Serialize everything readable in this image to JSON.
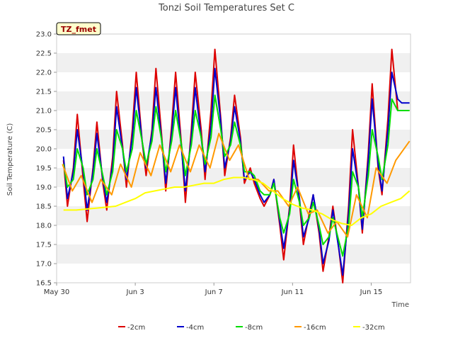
{
  "chart_data": {
    "type": "line",
    "title": "Tonzi Soil Temperatures Set C",
    "xlabel": "Time",
    "ylabel": "Soil Temperature (C)",
    "station_label": "TZ_fmet",
    "ylim": [
      16.5,
      23.0
    ],
    "xlim": [
      0,
      18
    ],
    "yticks": [
      16.5,
      17.0,
      17.5,
      18.0,
      18.5,
      19.0,
      19.5,
      20.0,
      20.5,
      21.0,
      21.5,
      22.0,
      22.5,
      23.0
    ],
    "xticks": [
      {
        "x": 0,
        "label": "May 30"
      },
      {
        "x": 4,
        "label": "Jun 3"
      },
      {
        "x": 8,
        "label": "Jun 7"
      },
      {
        "x": 12,
        "label": "Jun 11"
      },
      {
        "x": 16,
        "label": "Jun 15"
      }
    ],
    "grid": "horizontal bands",
    "legend_position": "bottom",
    "series": [
      {
        "name": "-2cm",
        "color": "#dd0000",
        "x": [
          0.35,
          0.55,
          0.85,
          1.05,
          1.35,
          1.55,
          1.85,
          2.05,
          2.35,
          2.55,
          2.85,
          3.05,
          3.35,
          3.55,
          3.85,
          4.05,
          4.35,
          4.55,
          4.85,
          5.05,
          5.35,
          5.55,
          5.85,
          6.05,
          6.35,
          6.55,
          6.85,
          7.05,
          7.35,
          7.55,
          7.85,
          8.05,
          8.35,
          8.55,
          8.85,
          9.05,
          9.35,
          9.55,
          9.85,
          10.05,
          10.35,
          10.55,
          10.85,
          11.05,
          11.35,
          11.55,
          11.85,
          12.05,
          12.35,
          12.55,
          12.85,
          13.05,
          13.35,
          13.55,
          13.85,
          14.05,
          14.35,
          14.55,
          14.85,
          15.05,
          15.35,
          15.55,
          15.85,
          16.05,
          16.35,
          16.55,
          16.85,
          17.05,
          17.35,
          17.55,
          17.85,
          17.95
        ],
        "y": [
          19.7,
          18.5,
          19.5,
          20.9,
          19.2,
          18.1,
          19.5,
          20.7,
          19.1,
          18.4,
          19.8,
          21.5,
          20.1,
          19.0,
          20.5,
          22.0,
          20.2,
          19.3,
          20.5,
          22.1,
          20.3,
          18.9,
          20.6,
          22.0,
          20.1,
          18.6,
          20.5,
          22.0,
          20.5,
          19.2,
          21.0,
          22.6,
          20.8,
          19.3,
          20.3,
          21.4,
          20.3,
          19.1,
          19.5,
          19.1,
          18.7,
          18.5,
          18.8,
          19.2,
          18.0,
          17.1,
          18.5,
          20.1,
          18.6,
          17.5,
          18.3,
          18.8,
          17.8,
          16.8,
          17.7,
          18.5,
          17.4,
          16.5,
          18.5,
          20.5,
          19.0,
          17.8,
          19.9,
          21.7,
          19.5,
          18.8,
          20.8,
          22.6,
          21.0,
          21.0,
          21.0,
          21.0
        ]
      },
      {
        "name": "-4cm",
        "color": "#0000cc",
        "x": [
          0.35,
          0.55,
          0.85,
          1.05,
          1.35,
          1.55,
          1.85,
          2.05,
          2.35,
          2.55,
          2.85,
          3.05,
          3.35,
          3.55,
          3.85,
          4.05,
          4.35,
          4.55,
          4.85,
          5.05,
          5.35,
          5.55,
          5.85,
          6.05,
          6.35,
          6.55,
          6.85,
          7.05,
          7.35,
          7.55,
          7.85,
          8.05,
          8.35,
          8.55,
          8.85,
          9.05,
          9.35,
          9.55,
          9.85,
          10.05,
          10.35,
          10.55,
          10.85,
          11.05,
          11.35,
          11.55,
          11.85,
          12.05,
          12.35,
          12.55,
          12.85,
          13.05,
          13.35,
          13.55,
          13.85,
          14.05,
          14.35,
          14.55,
          14.85,
          15.05,
          15.35,
          15.55,
          15.85,
          16.05,
          16.35,
          16.55,
          16.85,
          17.05,
          17.35,
          17.55,
          17.85,
          17.95
        ],
        "y": [
          19.8,
          18.7,
          19.4,
          20.5,
          19.4,
          18.4,
          19.4,
          20.4,
          19.2,
          18.6,
          19.6,
          21.1,
          20.0,
          19.2,
          20.3,
          21.6,
          20.2,
          19.5,
          20.4,
          21.6,
          20.2,
          19.1,
          20.4,
          21.6,
          20.0,
          18.9,
          20.3,
          21.6,
          20.3,
          19.4,
          20.6,
          22.1,
          20.7,
          19.5,
          20.2,
          21.1,
          20.2,
          19.2,
          19.4,
          19.2,
          18.8,
          18.6,
          18.8,
          19.2,
          18.1,
          17.4,
          18.4,
          19.7,
          18.7,
          17.7,
          18.2,
          18.8,
          17.9,
          17.0,
          17.6,
          18.4,
          17.4,
          16.7,
          18.3,
          20.0,
          19.0,
          17.9,
          19.7,
          21.3,
          19.6,
          18.9,
          20.5,
          22.0,
          21.3,
          21.2,
          21.2,
          21.2
        ]
      },
      {
        "name": "-8cm",
        "color": "#00dd00",
        "x": [
          0.35,
          0.55,
          0.85,
          1.05,
          1.35,
          1.55,
          1.85,
          2.05,
          2.35,
          2.55,
          2.85,
          3.05,
          3.35,
          3.55,
          3.85,
          4.05,
          4.35,
          4.55,
          4.85,
          5.05,
          5.35,
          5.55,
          5.85,
          6.05,
          6.35,
          6.55,
          6.85,
          7.05,
          7.35,
          7.55,
          7.85,
          8.05,
          8.35,
          8.55,
          8.85,
          9.05,
          9.35,
          9.55,
          9.85,
          10.05,
          10.35,
          10.55,
          10.85,
          11.05,
          11.35,
          11.55,
          11.85,
          12.05,
          12.35,
          12.55,
          12.85,
          13.05,
          13.35,
          13.55,
          13.85,
          14.05,
          14.35,
          14.55,
          14.85,
          15.05,
          15.35,
          15.55,
          15.85,
          16.05,
          16.35,
          16.55,
          16.85,
          17.05,
          17.35,
          17.55,
          17.85,
          17.95
        ],
        "y": [
          19.6,
          19.0,
          19.2,
          20.0,
          19.5,
          18.8,
          19.2,
          20.0,
          19.3,
          18.8,
          19.4,
          20.5,
          20.0,
          19.4,
          20.0,
          21.0,
          20.2,
          19.6,
          20.2,
          21.1,
          20.2,
          19.4,
          20.2,
          21.0,
          20.1,
          19.3,
          20.1,
          21.0,
          20.3,
          19.6,
          20.3,
          21.4,
          20.5,
          19.8,
          20.1,
          20.7,
          20.1,
          19.4,
          19.4,
          19.3,
          18.9,
          18.8,
          18.8,
          19.1,
          18.2,
          17.8,
          18.3,
          19.2,
          18.6,
          18.0,
          18.2,
          18.6,
          18.0,
          17.5,
          17.7,
          18.2,
          17.6,
          17.2,
          18.0,
          19.4,
          19.0,
          18.2,
          19.3,
          20.5,
          19.8,
          19.2,
          20.1,
          21.3,
          21.0,
          21.0,
          21.0,
          21.0
        ]
      },
      {
        "name": "-16cm",
        "color": "#ff9900",
        "x": [
          0.3,
          0.8,
          1.25,
          1.8,
          2.25,
          2.8,
          3.25,
          3.8,
          4.25,
          4.8,
          5.25,
          5.8,
          6.25,
          6.8,
          7.25,
          7.8,
          8.25,
          8.8,
          9.25,
          9.8,
          10.25,
          10.8,
          11.25,
          11.8,
          12.25,
          12.8,
          13.25,
          13.8,
          14.25,
          14.8,
          15.25,
          15.8,
          16.25,
          16.8,
          17.25,
          17.95
        ],
        "y": [
          19.6,
          18.9,
          19.3,
          18.6,
          19.2,
          18.8,
          19.6,
          19.0,
          19.9,
          19.3,
          20.1,
          19.4,
          20.1,
          19.4,
          20.1,
          19.5,
          20.4,
          19.7,
          20.1,
          19.2,
          19.2,
          18.9,
          18.9,
          18.5,
          19.0,
          18.3,
          18.4,
          17.8,
          18.1,
          17.7,
          18.8,
          18.2,
          19.5,
          19.1,
          19.7,
          20.2
        ]
      },
      {
        "name": "-32cm",
        "color": "#ffff00",
        "x": [
          0.35,
          1.0,
          2.0,
          3.0,
          3.5,
          4.0,
          4.5,
          5.0,
          5.5,
          6.0,
          6.5,
          7.0,
          7.5,
          8.0,
          8.5,
          9.0,
          9.5,
          10.0,
          10.5,
          11.0,
          11.5,
          12.0,
          12.5,
          13.0,
          13.5,
          14.0,
          14.5,
          15.0,
          15.5,
          16.0,
          16.5,
          17.0,
          17.5,
          17.95
        ],
        "y": [
          18.4,
          18.4,
          18.45,
          18.5,
          18.6,
          18.7,
          18.85,
          18.9,
          18.95,
          19.0,
          19.0,
          19.05,
          19.1,
          19.1,
          19.2,
          19.25,
          19.25,
          19.2,
          19.1,
          18.9,
          18.7,
          18.55,
          18.45,
          18.4,
          18.3,
          18.15,
          18.05,
          18.0,
          18.2,
          18.3,
          18.5,
          18.6,
          18.7,
          18.9
        ]
      }
    ]
  }
}
